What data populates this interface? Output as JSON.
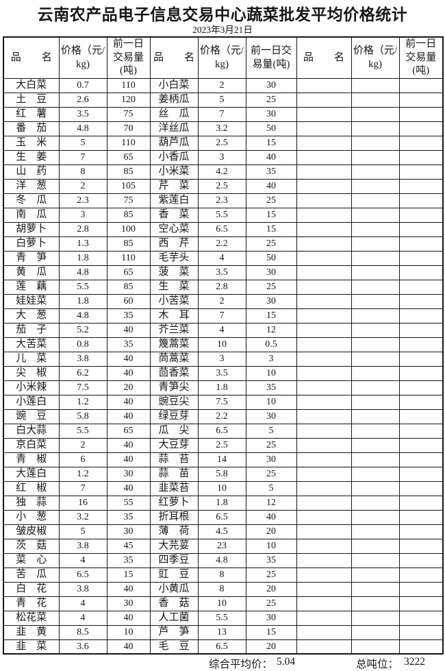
{
  "title": "云南农产品电子信息交易中心蔬菜批发平均价格统计",
  "date": "2023年3月21日",
  "table": {
    "headers": {
      "name": "品　　名",
      "price": "价格（元/kg)",
      "volume": "前一日交易量(吨)"
    },
    "row_count": 40,
    "blocks": [
      {
        "rows": [
          [
            "大白菜",
            "0.7",
            "110"
          ],
          [
            "土　豆",
            "2.6",
            "120"
          ],
          [
            "红　薯",
            "3.5",
            "75"
          ],
          [
            "番　茄",
            "4.8",
            "70"
          ],
          [
            "玉　米",
            "5",
            "110"
          ],
          [
            "生　姜",
            "7",
            "65"
          ],
          [
            "山　药",
            "8",
            "85"
          ],
          [
            "洋　葱",
            "2",
            "105"
          ],
          [
            "冬　瓜",
            "2.3",
            "75"
          ],
          [
            "南　瓜",
            "3",
            "85"
          ],
          [
            "胡萝卜",
            "2.8",
            "100"
          ],
          [
            "白萝卜",
            "1.3",
            "85"
          ],
          [
            "青　笋",
            "1.8",
            "110"
          ],
          [
            "黄　瓜",
            "4.8",
            "65"
          ],
          [
            "莲　藕",
            "5.5",
            "85"
          ],
          [
            "娃娃菜",
            "1.8",
            "60"
          ],
          [
            "大　葱",
            "4.8",
            "35"
          ],
          [
            "茄　子",
            "5.2",
            "40"
          ],
          [
            "大苦菜",
            "0.8",
            "35"
          ],
          [
            "儿　菜",
            "3.8",
            "40"
          ],
          [
            "尖　椒",
            "6.2",
            "40"
          ],
          [
            "小米辣",
            "7.5",
            "20"
          ],
          [
            "小莲白",
            "1.2",
            "40"
          ],
          [
            "豌　豆",
            "5.8",
            "40"
          ],
          [
            "白大蒜",
            "5.5",
            "65"
          ],
          [
            "京白菜",
            "2",
            "40"
          ],
          [
            "青　椒",
            "6",
            "40"
          ],
          [
            "大莲白",
            "1.2",
            "30"
          ],
          [
            "红　椒",
            "7",
            "40"
          ],
          [
            "独　蒜",
            "16",
            "55"
          ],
          [
            "小　葱",
            "3.2",
            "35"
          ],
          [
            "皱皮椒",
            "5",
            "30"
          ],
          [
            "茨　菇",
            "3.8",
            "45"
          ],
          [
            "菜　心",
            "4",
            "35"
          ],
          [
            "苦　瓜",
            "6.5",
            "15"
          ],
          [
            "白　花",
            "3.8",
            "40"
          ],
          [
            "青　花",
            "4",
            "30"
          ],
          [
            "松花菜",
            "4",
            "40"
          ],
          [
            "韭　黄",
            "8.5",
            "10"
          ],
          [
            "韭　菜",
            "3.6",
            "40"
          ]
        ]
      },
      {
        "rows": [
          [
            "小白菜",
            "2",
            "30"
          ],
          [
            "姜柄瓜",
            "5",
            "25"
          ],
          [
            "丝　瓜",
            "7",
            "30"
          ],
          [
            "洋丝瓜",
            "3.2",
            "50"
          ],
          [
            "葫芦瓜",
            "2.5",
            "15"
          ],
          [
            "小香瓜",
            "3",
            "40"
          ],
          [
            "小米菜",
            "4.2",
            "35"
          ],
          [
            "芹　菜",
            "2.5",
            "40"
          ],
          [
            "紫莲白",
            "2.3",
            "25"
          ],
          [
            "香　菜",
            "5.5",
            "15"
          ],
          [
            "空心菜",
            "6.5",
            "15"
          ],
          [
            "西　芹",
            "2.2",
            "25"
          ],
          [
            "毛芋头",
            "4",
            "50"
          ],
          [
            "菠　菜",
            "3.5",
            "30"
          ],
          [
            "生　菜",
            "2.8",
            "25"
          ],
          [
            "小苦菜",
            "2",
            "30"
          ],
          [
            "木　耳",
            "7",
            "15"
          ],
          [
            "芥兰菜",
            "4",
            "12"
          ],
          [
            "篾蒿菜",
            "10",
            "0.5"
          ],
          [
            "茼蒿菜",
            "3",
            "3"
          ],
          [
            "茴香菜",
            "3.5",
            "10"
          ],
          [
            "青笋尖",
            "1.8",
            "35"
          ],
          [
            "豌豆尖",
            "7.5",
            "10"
          ],
          [
            "绿豆芽",
            "2.2",
            "30"
          ],
          [
            "瓜　尖",
            "6.5",
            "5"
          ],
          [
            "大豆芽",
            "2.5",
            "25"
          ],
          [
            "蒜　苔",
            "14",
            "30"
          ],
          [
            "蒜　苗",
            "5.8",
            "25"
          ],
          [
            "韭菜苔",
            "10",
            "5"
          ],
          [
            "红萝卜",
            "1.8",
            "12"
          ],
          [
            "折耳根",
            "6.5",
            "40"
          ],
          [
            "薄　荷",
            "4.5",
            "20"
          ],
          [
            "大芫荽",
            "23",
            "10"
          ],
          [
            "四季豆",
            "4.8",
            "35"
          ],
          [
            "豇　豆",
            "8",
            "25"
          ],
          [
            "小黄瓜",
            "8",
            "20"
          ],
          [
            "香　菇",
            "10",
            "25"
          ],
          [
            "人工菌",
            "5.5",
            "30"
          ],
          [
            "芦　笋",
            "13",
            "15"
          ],
          [
            "毛　豆",
            "6.5",
            "20"
          ]
        ]
      },
      {
        "rows": []
      }
    ]
  },
  "summary": {
    "avg_label": "综合平均价：",
    "avg_value": "5.04",
    "tonnage_label": "总吨位：",
    "tonnage_value": "3222"
  }
}
